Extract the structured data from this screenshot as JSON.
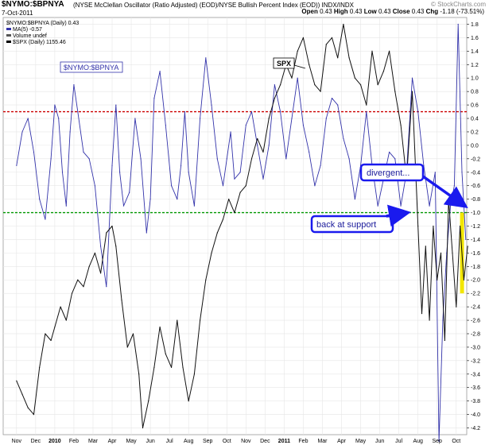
{
  "header": {
    "title": "$NYMO:$BPNYA",
    "subtitle": "(NYSE McClellan Oscillator (Ratio Adjusted) (EOD)/NYSE Bullish Percent Index (EOD))  INDX/INDX",
    "date": "7-Oct-2011",
    "watermark": "© StockCharts.com",
    "quote": {
      "open_label": "Open",
      "open": "0.43",
      "high_label": "High",
      "high": "0.43",
      "low_label": "Low",
      "low": "0.43",
      "close_label": "Close",
      "close": "0.43",
      "chg_label": "Chg",
      "chg": "-1.18 (-73.51%)"
    }
  },
  "legend": [
    {
      "text": "$NYMO:$BPNYA (Daily) 0.43",
      "color": "#000000",
      "marker": "none"
    },
    {
      "text": "MA(5) -0.57",
      "color": "#3333aa",
      "marker": "line"
    },
    {
      "text": "Volume undef",
      "color": "#555555",
      "marker": "bars"
    },
    {
      "text": "$SPX (Daily) 1155.46",
      "color": "#000000",
      "marker": "line"
    }
  ],
  "annotations": {
    "nymo_label": "$NYMO:$BPNYA",
    "spx_label": "SPX",
    "divergent": "divergent...",
    "support": "back at support"
  },
  "colors": {
    "ratio": "#3333aa",
    "spx": "#111111",
    "red_level": "#cc0000",
    "green_level": "#009900",
    "yellow_bar": "#f2e600",
    "callout_border": "#1a1aee",
    "arrow": "#1a1aee"
  },
  "chart_data": {
    "type": "line",
    "title": "$NYMO:$BPNYA",
    "x_labels": [
      "Nov",
      "Dec",
      "2010",
      "Feb",
      "Mar",
      "Apr",
      "May",
      "Jun",
      "Jul",
      "Aug",
      "Sep",
      "Oct",
      "Nov",
      "Dec",
      "2011",
      "Feb",
      "Mar",
      "Apr",
      "May",
      "Jun",
      "Jul",
      "Aug",
      "Sep",
      "Oct"
    ],
    "ylim": [
      -4.3,
      1.9
    ],
    "y_ticks": [
      1.8,
      1.6,
      1.4,
      1.2,
      1.0,
      0.8,
      0.6,
      0.4,
      0.2,
      0.0,
      -0.2,
      -0.4,
      -0.6,
      -0.8,
      -1.0,
      -1.2,
      -1.4,
      -1.6,
      -1.8,
      -2.0,
      -2.2,
      -2.4,
      -2.6,
      -2.8,
      -3.0,
      -3.2,
      -3.4,
      -3.6,
      -3.8,
      -4.0,
      -4.2
    ],
    "y_tick_labels": [
      "1.8",
      "1.6",
      "1.4",
      "1.2",
      "1.0",
      "0.8",
      "0.6",
      "0.4",
      "0.2",
      "0.0",
      "-0.2",
      "-0.4",
      "-0.6",
      "-0.8",
      "-1.0",
      "-1.2",
      "-1.4",
      "-1.6",
      "-1.8",
      "-2.0",
      "-2.2",
      "-2.4",
      "-2.6",
      "-2.8",
      "-3.0",
      "-3.2",
      "-3.4",
      "-3.6",
      "-3.8",
      "-4.0",
      "-4.2"
    ],
    "reference_lines": [
      {
        "value": 0.5,
        "color": "#cc0000",
        "style": "dashed"
      },
      {
        "value": -1.0,
        "color": "#009900",
        "style": "dashed"
      }
    ],
    "series": [
      {
        "name": "MA(5)",
        "color": "#3333aa",
        "axis": "ratio",
        "x": [
          0,
          0.3,
          0.6,
          0.9,
          1.2,
          1.5,
          1.8,
          2.0,
          2.2,
          2.4,
          2.6,
          2.8,
          3.0,
          3.2,
          3.5,
          3.8,
          4.1,
          4.4,
          4.7,
          5.0,
          5.2,
          5.4,
          5.6,
          5.9,
          6.2,
          6.5,
          6.8,
          7.0,
          7.2,
          7.5,
          7.8,
          8.1,
          8.4,
          8.6,
          8.8,
          9.0,
          9.3,
          9.6,
          9.9,
          10.2,
          10.5,
          10.8,
          11.0,
          11.2,
          11.4,
          11.7,
          12.0,
          12.3,
          12.6,
          12.9,
          13.2,
          13.5,
          13.8,
          14.1,
          14.4,
          14.7,
          15.0,
          15.3,
          15.6,
          15.9,
          16.2,
          16.5,
          16.8,
          17.1,
          17.4,
          17.7,
          18.0,
          18.3,
          18.6,
          18.9,
          19.2,
          19.5,
          19.8,
          20.1,
          20.4,
          20.7,
          21.0,
          21.3,
          21.6,
          21.9,
          22.1,
          22.3,
          22.5,
          22.7,
          22.9,
          23.1,
          23.3,
          23.5
        ],
        "values": [
          -0.3,
          0.2,
          0.4,
          -0.1,
          -0.8,
          -1.1,
          -0.2,
          0.6,
          0.4,
          -0.4,
          -0.9,
          0.2,
          0.9,
          0.5,
          -0.1,
          -0.2,
          -0.6,
          -1.5,
          -2.1,
          -0.3,
          0.6,
          -0.4,
          -0.9,
          -0.7,
          0.4,
          -0.2,
          -1.3,
          -0.8,
          0.7,
          1.1,
          0.3,
          -0.6,
          -0.8,
          -0.3,
          0.5,
          -0.4,
          -0.9,
          0.4,
          1.3,
          0.6,
          -0.2,
          -0.6,
          -0.2,
          0.2,
          -0.5,
          -0.4,
          0.3,
          0.5,
          0.0,
          -0.5,
          0.0,
          0.9,
          0.5,
          -0.2,
          0.4,
          1.0,
          0.3,
          -0.1,
          -0.6,
          -0.3,
          0.4,
          0.7,
          0.6,
          0.1,
          -0.2,
          -0.8,
          -0.3,
          0.5,
          -0.3,
          -0.9,
          -0.5,
          -0.1,
          -0.2,
          -0.9,
          -0.4,
          1.0,
          0.5,
          -0.3,
          -0.9,
          -0.4,
          -4.4,
          -2.6,
          -1.6,
          -0.9,
          -0.6,
          1.8,
          -0.4,
          -1.4
        ]
      },
      {
        "name": "$SPX (Daily)",
        "color": "#111111",
        "axis": "spx",
        "x": [
          0,
          0.3,
          0.6,
          0.9,
          1.2,
          1.5,
          1.8,
          2.0,
          2.3,
          2.6,
          2.9,
          3.2,
          3.5,
          3.8,
          4.1,
          4.4,
          4.7,
          5.0,
          5.2,
          5.5,
          5.8,
          6.1,
          6.4,
          6.6,
          6.9,
          7.2,
          7.5,
          7.8,
          8.1,
          8.4,
          8.7,
          9.0,
          9.3,
          9.6,
          9.9,
          10.2,
          10.5,
          10.8,
          11.1,
          11.4,
          11.7,
          12.0,
          12.3,
          12.6,
          12.9,
          13.2,
          13.5,
          13.8,
          14.1,
          14.4,
          14.7,
          15.0,
          15.3,
          15.6,
          15.9,
          16.2,
          16.5,
          16.8,
          17.1,
          17.4,
          17.7,
          18.0,
          18.3,
          18.6,
          18.9,
          19.2,
          19.5,
          19.8,
          20.1,
          20.4,
          20.7,
          21.0,
          21.2,
          21.4,
          21.6,
          21.8,
          22.0,
          22.2,
          22.4,
          22.6,
          22.8,
          23.0,
          23.2,
          23.4,
          23.6
        ],
        "values": [
          -3.5,
          -3.7,
          -3.9,
          -4.0,
          -3.3,
          -2.8,
          -2.9,
          -2.7,
          -2.4,
          -2.6,
          -2.2,
          -2.0,
          -2.1,
          -1.8,
          -1.6,
          -1.9,
          -1.3,
          -1.2,
          -1.5,
          -2.3,
          -3.0,
          -2.8,
          -3.4,
          -4.2,
          -3.8,
          -3.3,
          -2.7,
          -3.1,
          -3.3,
          -2.6,
          -3.3,
          -3.8,
          -3.4,
          -2.6,
          -2.0,
          -1.6,
          -1.3,
          -1.1,
          -0.8,
          -1.0,
          -0.7,
          -0.6,
          -0.2,
          0.1,
          -0.1,
          0.4,
          0.7,
          0.9,
          1.2,
          1.0,
          1.4,
          1.6,
          1.2,
          0.9,
          0.8,
          1.5,
          1.6,
          1.3,
          1.8,
          1.3,
          1.0,
          0.9,
          0.6,
          1.4,
          0.9,
          1.1,
          1.4,
          0.8,
          0.3,
          -0.5,
          0.8,
          -1.2,
          -2.5,
          -1.5,
          -2.6,
          -1.2,
          -2.0,
          -1.6,
          -2.9,
          -0.8,
          -1.6,
          -2.4,
          -1.2,
          -2.0,
          -1.5
        ]
      }
    ]
  }
}
